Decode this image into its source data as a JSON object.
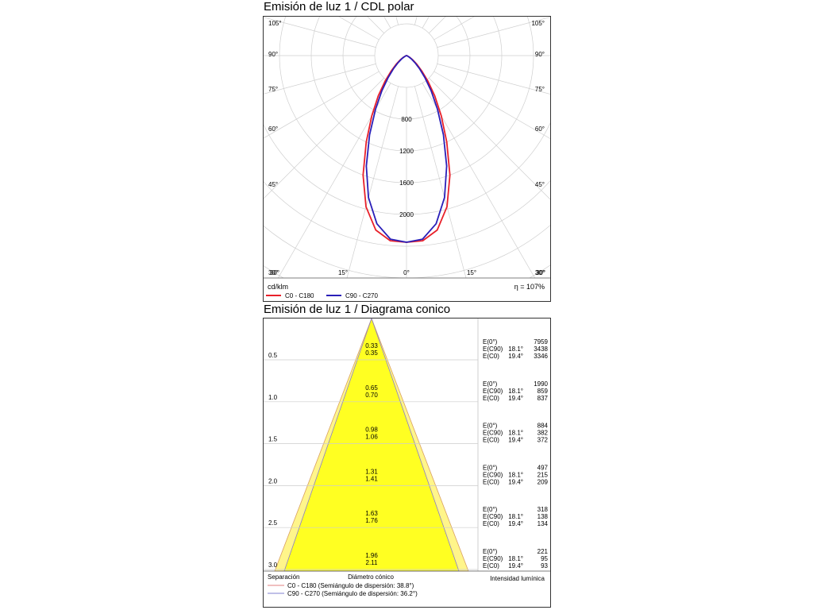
{
  "polar": {
    "title": "Emisión de luz 1 / CDL polar",
    "unit": "cd/klm",
    "efficiency": "η = 107%",
    "legend": [
      {
        "label": "C0 - C180",
        "color": "#e8202a"
      },
      {
        "label": "C90 - C270",
        "color": "#2a1fb8"
      }
    ]
  },
  "cone": {
    "title": "Emisión de luz 1 / Diagrama conico",
    "footer": {
      "separation": "Separación",
      "diameter": "Diámetro cónico",
      "intensity": "Intensidad lumínica"
    },
    "legend": [
      {
        "label": "C0 - C180 (Semiángulo de dispersión: 38.8°)",
        "color": "#e08080"
      },
      {
        "label": "C90 - C270 (Semiángulo de dispersión: 36.2°)",
        "color": "#8080d0"
      }
    ]
  },
  "chart_data": [
    {
      "type": "polar",
      "title": "Emisión de luz 1 / CDL polar",
      "unit": "cd/klm",
      "radial_ticks": [
        800,
        1200,
        1600,
        2000
      ],
      "angle_labels_left": [
        "105°",
        "90°",
        "75°",
        "60°",
        "45°",
        "30°"
      ],
      "angle_labels_right": [
        "105°",
        "90°",
        "75°",
        "60°",
        "45°",
        "30°"
      ],
      "angle_labels_bottom": [
        "30°",
        "15°",
        "0°",
        "15°",
        "30°"
      ],
      "grid": true,
      "series": [
        {
          "name": "C0 - C180",
          "color": "#e8202a",
          "angles_deg": [
            0,
            5,
            10,
            15,
            20,
            25,
            30,
            35,
            40,
            45,
            50,
            55,
            60,
            65,
            70,
            75,
            80,
            85,
            90
          ],
          "values": [
            2350,
            2340,
            2230,
            1970,
            1600,
            1200,
            875,
            620,
            420,
            270,
            170,
            100,
            55,
            25,
            10,
            4,
            1,
            0,
            0
          ]
        },
        {
          "name": "C90 - C270",
          "color": "#2a1fb8",
          "angles_deg": [
            0,
            5,
            10,
            15,
            20,
            25,
            30,
            35,
            40,
            45,
            50,
            55,
            60,
            65,
            70,
            75,
            80,
            85,
            90
          ],
          "values": [
            2350,
            2320,
            2150,
            1850,
            1480,
            1100,
            780,
            540,
            360,
            230,
            140,
            80,
            40,
            18,
            7,
            2,
            1,
            0,
            0
          ]
        }
      ],
      "efficiency": "η = 107%"
    },
    {
      "type": "table",
      "title": "Emisión de luz 1 / Diagrama conico",
      "rows": [
        {
          "separation": "0.5",
          "d_c90": "0.33",
          "d_c0": "0.35",
          "e0": "7959",
          "e_c90_angle": "18.1°",
          "e_c90": "3438",
          "e_c0_angle": "19.4°",
          "e_c0": "3346"
        },
        {
          "separation": "1.0",
          "d_c90": "0.65",
          "d_c0": "0.70",
          "e0": "1990",
          "e_c90_angle": "18.1°",
          "e_c90": "859",
          "e_c0_angle": "19.4°",
          "e_c0": "837"
        },
        {
          "separation": "1.5",
          "d_c90": "0.98",
          "d_c0": "1.06",
          "e0": "884",
          "e_c90_angle": "18.1°",
          "e_c90": "382",
          "e_c0_angle": "19.4°",
          "e_c0": "372"
        },
        {
          "separation": "2.0",
          "d_c90": "1.31",
          "d_c0": "1.41",
          "e0": "497",
          "e_c90_angle": "18.1°",
          "e_c90": "215",
          "e_c0_angle": "19.4°",
          "e_c0": "209"
        },
        {
          "separation": "2.5",
          "d_c90": "1.63",
          "d_c0": "1.76",
          "e0": "318",
          "e_c90_angle": "18.1°",
          "e_c90": "138",
          "e_c0_angle": "19.4°",
          "e_c0": "134"
        },
        {
          "separation": "3.0",
          "d_c90": "1.96",
          "d_c0": "2.11",
          "e0": "221",
          "e_c90_angle": "18.1°",
          "e_c90": "95",
          "e_c0_angle": "19.4°",
          "e_c0": "93"
        }
      ],
      "labels": {
        "e0": "E(0°)",
        "e_c90": "E(C90)",
        "e_c0": "E(C0)"
      },
      "half_angles_deg": {
        "C0 - C180": 38.8,
        "C90 - C270": 36.2
      },
      "fill_color": "#ffff22"
    }
  ]
}
